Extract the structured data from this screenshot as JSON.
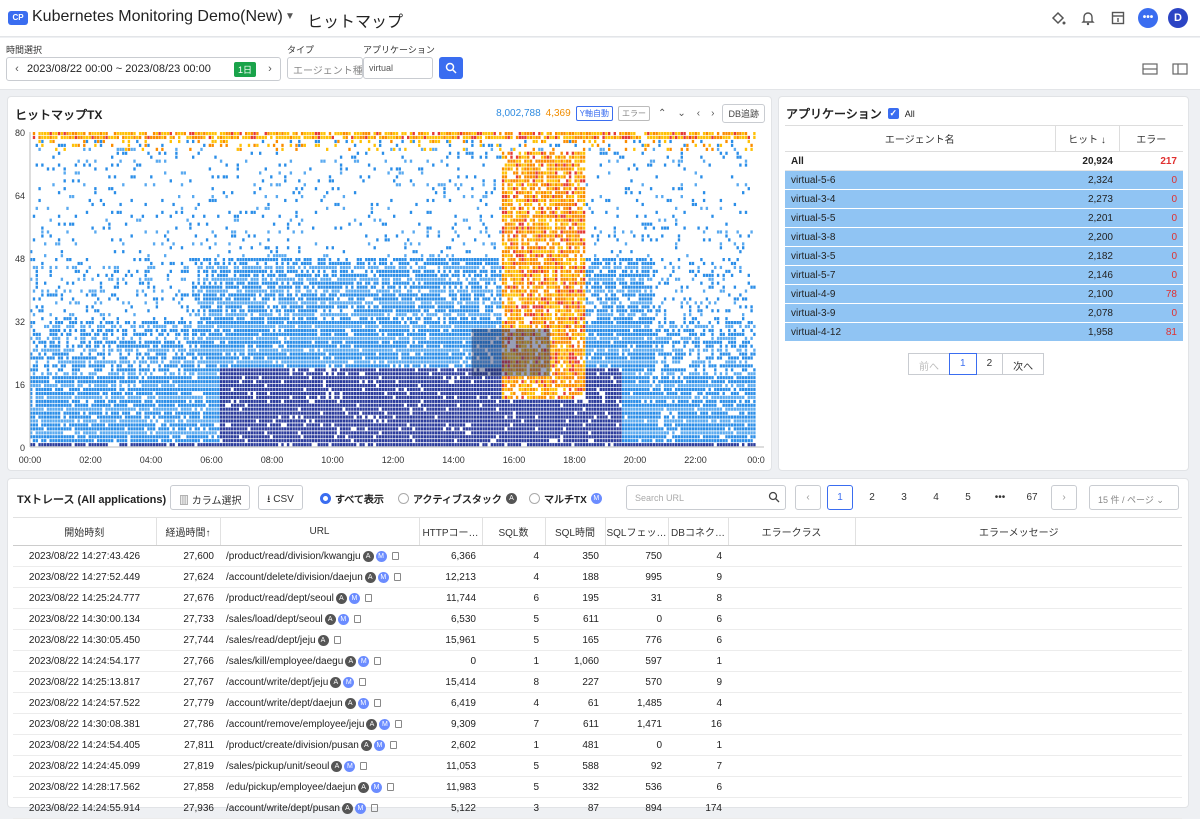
{
  "header": {
    "badge": "CP",
    "project": "Kubernetes Monitoring Demo(New)",
    "page_title": "ヒットマップ",
    "avatar_initial": "D"
  },
  "filters": {
    "time_label": "時間選択",
    "time_start": "2023/08/22 00:00",
    "time_sep": "~",
    "time_end": "2023/08/23 00:00",
    "duration_badge": "1日",
    "type_label": "タイプ",
    "type_value": "エージェント種類",
    "app_label": "アプリケーション",
    "app_value": "virtual"
  },
  "heatmap": {
    "title": "ヒットマップTX",
    "count_total": "8,002,788",
    "count_error": "4,369",
    "y_auto_chip": "Y軸自動",
    "error_chip": "エラー",
    "db_button": "DB追跡",
    "y_ticks": [
      "80",
      "64",
      "48",
      "32",
      "16",
      "0"
    ],
    "x_ticks": [
      "00:00",
      "02:00",
      "04:00",
      "06:00",
      "08:00",
      "10:00",
      "12:00",
      "14:00",
      "16:00",
      "18:00",
      "20:00",
      "22:00",
      "00:0"
    ],
    "colors": {
      "dark": "#2c3c9c",
      "blue": "#2b8ee8",
      "light": "#5aaaf0",
      "yellow": "#ffc107",
      "orange": "#fb8c00",
      "red": "#e53935"
    }
  },
  "apps": {
    "title": "アプリケーション",
    "all_checkbox": "All",
    "columns": {
      "name": "エージェント名",
      "hit": "ヒット ↓",
      "err": "エラー"
    },
    "rows": [
      {
        "name": "All",
        "hit": "20,924",
        "err": "217"
      },
      {
        "name": "virtual-5-6",
        "hit": "2,324",
        "err": "0"
      },
      {
        "name": "virtual-3-4",
        "hit": "2,273",
        "err": "0"
      },
      {
        "name": "virtual-5-5",
        "hit": "2,201",
        "err": "0"
      },
      {
        "name": "virtual-3-8",
        "hit": "2,200",
        "err": "0"
      },
      {
        "name": "virtual-3-5",
        "hit": "2,182",
        "err": "0"
      },
      {
        "name": "virtual-5-7",
        "hit": "2,146",
        "err": "0"
      },
      {
        "name": "virtual-4-9",
        "hit": "2,100",
        "err": "78"
      },
      {
        "name": "virtual-3-9",
        "hit": "2,078",
        "err": "0"
      },
      {
        "name": "virtual-4-12",
        "hit": "1,958",
        "err": "81"
      }
    ],
    "pager": {
      "prev": "前へ",
      "p1": "1",
      "p2": "2",
      "next": "次へ"
    }
  },
  "tx": {
    "title": "TXトレース (All applications)",
    "col_select": "カラム選択",
    "csv": "CSV",
    "radio_all": "すべて表示",
    "radio_active": "アクティブスタック",
    "radio_multi": "マルチTX",
    "badge_a": "A",
    "badge_m": "M",
    "search_placeholder": "Search URL",
    "pages": [
      "1",
      "2",
      "3",
      "4",
      "5",
      "•••",
      "67"
    ],
    "per_page": "15 件 / ページ",
    "columns": [
      "開始時刻",
      "経過時間↑",
      "URL",
      "HTTPコー…",
      "SQL数",
      "SQL時間",
      "SQLフェッ…",
      "DBコネク…",
      "エラークラス",
      "エラーメッセージ"
    ],
    "rows": [
      {
        "time": "2023/08/22 14:27:43.426",
        "elapsed": "27,600",
        "url": "/product/read/division/kwangju",
        "a": true,
        "m": true,
        "http": "6,366",
        "sql": "4",
        "sqlt": "350",
        "fetch": "750",
        "dbc": "4"
      },
      {
        "time": "2023/08/22 14:27:52.449",
        "elapsed": "27,624",
        "url": "/account/delete/division/daejun",
        "a": true,
        "m": true,
        "http": "12,213",
        "sql": "4",
        "sqlt": "188",
        "fetch": "995",
        "dbc": "9"
      },
      {
        "time": "2023/08/22 14:25:24.777",
        "elapsed": "27,676",
        "url": "/product/read/dept/seoul",
        "a": true,
        "m": true,
        "http": "11,744",
        "sql": "6",
        "sqlt": "195",
        "fetch": "31",
        "dbc": "8"
      },
      {
        "time": "2023/08/22 14:30:00.134",
        "elapsed": "27,733",
        "url": "/sales/load/dept/seoul",
        "a": true,
        "m": true,
        "http": "6,530",
        "sql": "5",
        "sqlt": "611",
        "fetch": "0",
        "dbc": "6"
      },
      {
        "time": "2023/08/22 14:30:05.450",
        "elapsed": "27,744",
        "url": "/sales/read/dept/jeju",
        "a": true,
        "m": false,
        "http": "15,961",
        "sql": "5",
        "sqlt": "165",
        "fetch": "776",
        "dbc": "6"
      },
      {
        "time": "2023/08/22 14:24:54.177",
        "elapsed": "27,766",
        "url": "/sales/kill/employee/daegu",
        "a": true,
        "m": true,
        "http": "0",
        "sql": "1",
        "sqlt": "1,060",
        "fetch": "597",
        "dbc": "1"
      },
      {
        "time": "2023/08/22 14:25:13.817",
        "elapsed": "27,767",
        "url": "/account/write/dept/jeju",
        "a": true,
        "m": true,
        "http": "15,414",
        "sql": "8",
        "sqlt": "227",
        "fetch": "570",
        "dbc": "9"
      },
      {
        "time": "2023/08/22 14:24:57.522",
        "elapsed": "27,779",
        "url": "/account/write/dept/daejun",
        "a": true,
        "m": true,
        "http": "6,419",
        "sql": "4",
        "sqlt": "61",
        "fetch": "1,485",
        "dbc": "4"
      },
      {
        "time": "2023/08/22 14:30:08.381",
        "elapsed": "27,786",
        "url": "/account/remove/employee/jeju",
        "a": true,
        "m": true,
        "http": "9,309",
        "sql": "7",
        "sqlt": "611",
        "fetch": "1,471",
        "dbc": "16"
      },
      {
        "time": "2023/08/22 14:24:54.405",
        "elapsed": "27,811",
        "url": "/product/create/division/pusan",
        "a": true,
        "m": true,
        "http": "2,602",
        "sql": "1",
        "sqlt": "481",
        "fetch": "0",
        "dbc": "1"
      },
      {
        "time": "2023/08/22 14:24:45.099",
        "elapsed": "27,819",
        "url": "/sales/pickup/unit/seoul",
        "a": true,
        "m": true,
        "http": "11,053",
        "sql": "5",
        "sqlt": "588",
        "fetch": "92",
        "dbc": "7"
      },
      {
        "time": "2023/08/22 14:28:17.562",
        "elapsed": "27,858",
        "url": "/edu/pickup/employee/daejun",
        "a": true,
        "m": true,
        "http": "11,983",
        "sql": "5",
        "sqlt": "332",
        "fetch": "536",
        "dbc": "6"
      },
      {
        "time": "2023/08/22 14:24:55.914",
        "elapsed": "27,936",
        "url": "/account/write/dept/pusan",
        "a": true,
        "m": true,
        "http": "5,122",
        "sql": "3",
        "sqlt": "87",
        "fetch": "894",
        "dbc": "174"
      }
    ]
  }
}
